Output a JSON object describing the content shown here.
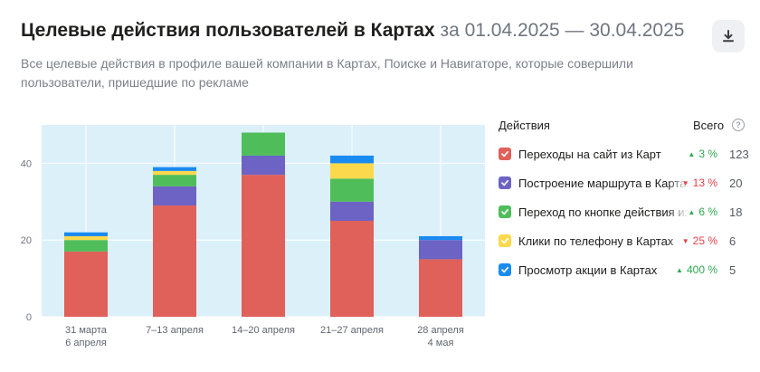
{
  "header": {
    "title": "Целевые действия пользователей в Картах",
    "period": "за 01.04.2025 — 30.04.2025",
    "subtitle": "Все целевые действия в профиле вашей компании в Картах, Поиске и Навигаторе, которые совершили пользователи, пришедшие по рекламе"
  },
  "legend": {
    "header_actions": "Действия",
    "header_total": "Всего",
    "items": [
      {
        "label": "Переходы на сайт из Карт",
        "delta": "3 %",
        "direction": "up",
        "total": "123",
        "color": "#e0605a"
      },
      {
        "label": "Построение маршрута в Картах",
        "delta": "13 %",
        "direction": "down",
        "total": "20",
        "color": "#6c63c4"
      },
      {
        "label": "Переход по кнопке действия из Карт",
        "delta": "6 %",
        "direction": "up",
        "total": "18",
        "color": "#4fbe5a"
      },
      {
        "label": "Клики по телефону в Картах",
        "delta": "25 %",
        "direction": "down",
        "total": "6",
        "color": "#fcd94c"
      },
      {
        "label": "Просмотр акции в Картах",
        "delta": "400 %",
        "direction": "up",
        "total": "5",
        "color": "#1a8bf0"
      }
    ]
  },
  "chart_data": {
    "type": "bar",
    "stacked": true,
    "categories": [
      [
        "31 марта",
        "6 апреля"
      ],
      [
        "7–13 апреля"
      ],
      [
        "14–20 апреля"
      ],
      [
        "21–27 апреля"
      ],
      [
        "28 апреля",
        "4 мая"
      ]
    ],
    "series": [
      {
        "name": "Переходы на сайт из Карт",
        "color": "#e0605a",
        "values": [
          17,
          29,
          37,
          25,
          15
        ]
      },
      {
        "name": "Построение маршрута в Картах",
        "color": "#6c63c4",
        "values": [
          0,
          5,
          5,
          5,
          5
        ]
      },
      {
        "name": "Переход по кнопке действия из Карт",
        "color": "#4fbe5a",
        "values": [
          3,
          3,
          6,
          6,
          0
        ]
      },
      {
        "name": "Клики по телефону в Картах",
        "color": "#fcd94c",
        "values": [
          1,
          1,
          0,
          4,
          0
        ]
      },
      {
        "name": "Просмотр акции в Картах",
        "color": "#1a8bf0",
        "values": [
          1,
          1,
          0,
          2,
          1
        ]
      }
    ],
    "yticks": [
      0,
      20,
      40
    ],
    "ylim": [
      0,
      50
    ],
    "grid": true,
    "plot_background": "#dcf0fa"
  }
}
